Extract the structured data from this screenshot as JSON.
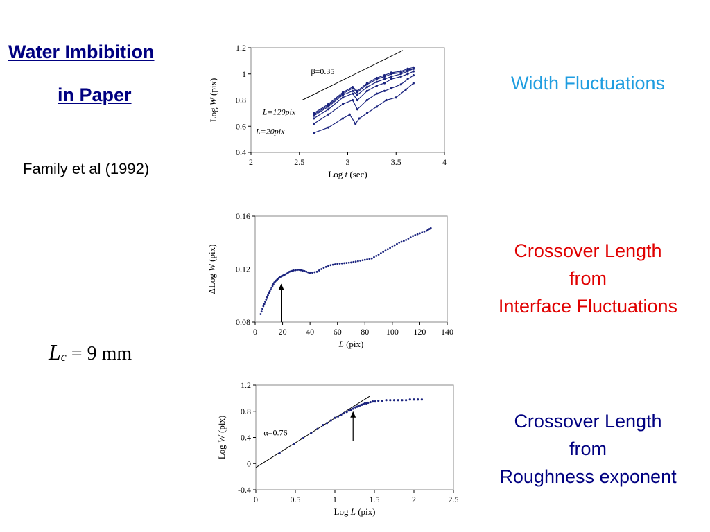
{
  "slide": {
    "title_line1": "Water Imbibition ",
    "title_line2": "in Paper",
    "citation": "Family et al (1992)",
    "lc_symbol": "L",
    "lc_subscript": "c",
    "lc_value": " = 9 mm",
    "caption1": "Width Fluctuations",
    "caption2_lines": [
      "Crossover Length",
      "from",
      "Interface Fluctuations"
    ],
    "caption3_lines": [
      "Crossover Length",
      "from",
      "Roughness exponent"
    ],
    "colors": {
      "title": "#000080",
      "caption1": "#1f9de0",
      "caption2": "#e00000",
      "caption3": "#000080",
      "series": "#1a237e"
    }
  },
  "chart_data": [
    {
      "type": "line",
      "xlabel": "Log t  (sec)",
      "ylabel": "Log W  (pix)",
      "xlim": [
        2,
        4
      ],
      "ylim": [
        0.4,
        1.2
      ],
      "xticks": [
        "2",
        "2.5",
        "3",
        "3.5",
        "4"
      ],
      "yticks": [
        "0.4",
        "0.6",
        "0.8",
        "1",
        "1.2"
      ],
      "annotations": [
        "β=0.35",
        "L=120pix",
        "L=20pix"
      ],
      "reference_line": {
        "slope": 0.35,
        "from": [
          2.53,
          0.8
        ],
        "to": [
          3.57,
          1.18
        ]
      },
      "series": [
        {
          "x": [
            2.65,
            2.8,
            2.95,
            3.05,
            3.1,
            3.2,
            3.3,
            3.38,
            3.45,
            3.55,
            3.62,
            3.68
          ],
          "values": [
            0.7,
            0.77,
            0.86,
            0.9,
            0.87,
            0.93,
            0.97,
            0.99,
            1.01,
            1.02,
            1.04,
            1.05
          ]
        },
        {
          "x": [
            2.65,
            2.8,
            2.95,
            3.05,
            3.1,
            3.2,
            3.3,
            3.38,
            3.45,
            3.55,
            3.62,
            3.68
          ],
          "values": [
            0.69,
            0.76,
            0.85,
            0.89,
            0.86,
            0.92,
            0.96,
            0.98,
            1.0,
            1.01,
            1.03,
            1.04
          ]
        },
        {
          "x": [
            2.65,
            2.8,
            2.95,
            3.05,
            3.1,
            3.2,
            3.3,
            3.38,
            3.45,
            3.55,
            3.62,
            3.68
          ],
          "values": [
            0.68,
            0.75,
            0.84,
            0.87,
            0.84,
            0.9,
            0.94,
            0.96,
            0.98,
            1.0,
            1.02,
            1.04
          ]
        },
        {
          "x": [
            2.65,
            2.8,
            2.95,
            3.05,
            3.1,
            3.2,
            3.3,
            3.38,
            3.45,
            3.55,
            3.62,
            3.68
          ],
          "values": [
            0.66,
            0.73,
            0.82,
            0.85,
            0.8,
            0.87,
            0.91,
            0.93,
            0.96,
            0.98,
            1.0,
            1.02
          ]
        },
        {
          "x": [
            2.65,
            2.8,
            2.95,
            3.05,
            3.1,
            3.2,
            3.3,
            3.38,
            3.45,
            3.55,
            3.62,
            3.68
          ],
          "values": [
            0.62,
            0.69,
            0.77,
            0.8,
            0.73,
            0.8,
            0.85,
            0.87,
            0.89,
            0.92,
            0.96,
            0.99
          ]
        },
        {
          "x": [
            2.65,
            2.8,
            2.95,
            3.02,
            3.08,
            3.12,
            3.2,
            3.3,
            3.4,
            3.5,
            3.6,
            3.68
          ],
          "values": [
            0.55,
            0.59,
            0.66,
            0.69,
            0.62,
            0.66,
            0.7,
            0.75,
            0.8,
            0.82,
            0.88,
            0.93
          ]
        }
      ]
    },
    {
      "type": "scatter",
      "xlabel": "L  (pix)",
      "ylabel": "ΔLog W  (pix)",
      "xlim": [
        0,
        140
      ],
      "ylim": [
        0.08,
        0.16
      ],
      "xticks": [
        "0",
        "20",
        "40",
        "60",
        "80",
        "100",
        "120",
        "140"
      ],
      "yticks": [
        "0.08",
        "0.12",
        "0.16"
      ],
      "arrow_at_x": 19,
      "series": [
        {
          "x": [
            4,
            6,
            8,
            10,
            12,
            14,
            16,
            18,
            20,
            22,
            25,
            28,
            32,
            36,
            40,
            45,
            50,
            55,
            60,
            65,
            70,
            75,
            80,
            85,
            90,
            95,
            100,
            105,
            110,
            115,
            120,
            125,
            128
          ],
          "values": [
            0.086,
            0.092,
            0.097,
            0.102,
            0.106,
            0.11,
            0.112,
            0.114,
            0.115,
            0.116,
            0.118,
            0.119,
            0.1195,
            0.1185,
            0.117,
            0.118,
            0.121,
            0.123,
            0.124,
            0.1245,
            0.125,
            0.126,
            0.127,
            0.128,
            0.131,
            0.134,
            0.137,
            0.14,
            0.142,
            0.145,
            0.147,
            0.149,
            0.151
          ]
        }
      ]
    },
    {
      "type": "scatter",
      "xlabel": "Log L  (pix)",
      "ylabel": "Log W  (pix)",
      "xlim": [
        0,
        2.5
      ],
      "ylim": [
        -0.4,
        1.2
      ],
      "xticks": [
        "0",
        "0.5",
        "1",
        "1.5",
        "2",
        "2.5"
      ],
      "yticks": [
        "-0.4",
        "0",
        "0.4",
        "0.8",
        "1.2"
      ],
      "annotations": [
        "α=0.76"
      ],
      "reference_line": {
        "slope": 0.76,
        "from": [
          0,
          -0.06
        ],
        "to": [
          1.44,
          1.03
        ]
      },
      "arrow_at_x": 1.23,
      "series": [
        {
          "x": [
            0.3,
            0.48,
            0.6,
            0.7,
            0.78,
            0.85,
            0.9,
            0.95,
            1.0,
            1.04,
            1.08,
            1.11,
            1.15,
            1.18,
            1.2,
            1.23,
            1.26,
            1.28,
            1.3,
            1.32,
            1.34,
            1.36,
            1.38,
            1.4,
            1.42,
            1.45,
            1.48,
            1.51,
            1.55,
            1.6,
            1.65,
            1.7,
            1.75,
            1.8,
            1.85,
            1.9,
            1.95,
            2.0,
            2.05,
            2.1
          ],
          "values": [
            0.16,
            0.3,
            0.39,
            0.47,
            0.53,
            0.59,
            0.62,
            0.66,
            0.7,
            0.72,
            0.75,
            0.77,
            0.79,
            0.81,
            0.82,
            0.84,
            0.86,
            0.87,
            0.88,
            0.89,
            0.9,
            0.91,
            0.92,
            0.92,
            0.93,
            0.94,
            0.95,
            0.95,
            0.96,
            0.96,
            0.97,
            0.97,
            0.97,
            0.97,
            0.97,
            0.97,
            0.98,
            0.98,
            0.98,
            0.98
          ]
        }
      ]
    }
  ]
}
